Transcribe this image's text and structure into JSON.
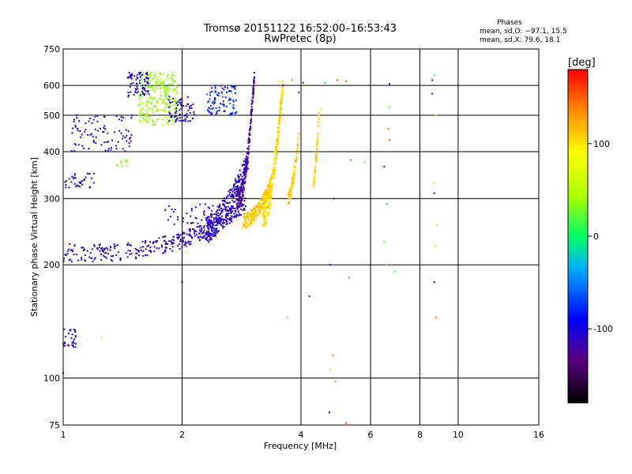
{
  "chart_data": {
    "type": "scatter",
    "title_line1": "Tromsø 20151122 16:52:00–16:53:43",
    "title_line2": "RwPretec (8p)",
    "stats": {
      "heading": "Phases",
      "line_o": "mean, sd,O: −97.1, 15.5",
      "line_x": "mean, sd,X:  79.6, 18.1"
    },
    "xlabel": "Frequency [MHz]",
    "ylabel": "Stationary phase Virtual Height [km]",
    "x_scale": "log",
    "y_scale": "log",
    "xlim": [
      1,
      16
    ],
    "ylim": [
      75,
      750
    ],
    "x_ticks": [
      1,
      2,
      4,
      6,
      8,
      10,
      16
    ],
    "y_ticks": [
      75,
      100,
      200,
      300,
      400,
      500,
      600,
      750
    ],
    "x_grid": [
      2,
      4,
      6,
      8,
      10
    ],
    "y_grid": [
      100,
      200,
      300,
      400,
      500,
      600
    ],
    "colorbar": {
      "label": "[deg]",
      "range": [
        -180,
        180
      ],
      "ticks": [
        100,
        0,
        -100
      ]
    },
    "clusters": [
      {
        "kind": "curve",
        "x0": 1.0,
        "x1": 2.9,
        "y0": 215,
        "y1": 290,
        "exp": 2.2,
        "spread": 12,
        "n": 380,
        "phase": -110,
        "ps": 14
      },
      {
        "kind": "curve",
        "x0": 2.3,
        "x1": 2.95,
        "y0": 250,
        "y1": 380,
        "exp": 1.6,
        "spread": 22,
        "n": 260,
        "phase": -108,
        "ps": 18
      },
      {
        "kind": "curve",
        "x0": 2.75,
        "x1": 3.05,
        "y0": 300,
        "y1": 640,
        "exp": 2.6,
        "spread": 20,
        "n": 220,
        "phase": -125,
        "ps": 14
      },
      {
        "kind": "curve",
        "x0": 2.85,
        "x1": 3.35,
        "y0": 262,
        "y1": 330,
        "exp": 2.0,
        "spread": 12,
        "n": 240,
        "phase": 112,
        "ps": 12
      },
      {
        "kind": "curve",
        "x0": 3.2,
        "x1": 3.6,
        "y0": 275,
        "y1": 600,
        "exp": 2.2,
        "spread": 25,
        "n": 320,
        "phase": 105,
        "ps": 14
      },
      {
        "kind": "curve",
        "x0": 3.7,
        "x1": 3.95,
        "y0": 300,
        "y1": 440,
        "exp": 1.8,
        "spread": 14,
        "n": 80,
        "phase": 115,
        "ps": 14
      },
      {
        "kind": "curve",
        "x0": 4.3,
        "x1": 4.45,
        "y0": 330,
        "y1": 510,
        "exp": 1.5,
        "spread": 10,
        "n": 60,
        "phase": 110,
        "ps": 10
      },
      {
        "kind": "blob",
        "x0": 1.55,
        "x1": 1.95,
        "y0": 470,
        "y1": 650,
        "n": 260,
        "phase": 40,
        "ps": 15
      },
      {
        "kind": "blob",
        "x0": 1.45,
        "x1": 1.65,
        "y0": 560,
        "y1": 650,
        "n": 70,
        "phase": -105,
        "ps": 15
      },
      {
        "kind": "blob",
        "x0": 1.85,
        "x1": 2.15,
        "y0": 480,
        "y1": 560,
        "n": 70,
        "phase": -110,
        "ps": 15
      },
      {
        "kind": "blob",
        "x0": 2.3,
        "x1": 2.75,
        "y0": 500,
        "y1": 600,
        "n": 90,
        "phase": -80,
        "ps": 20
      },
      {
        "kind": "blob",
        "x0": 1.05,
        "x1": 1.5,
        "y0": 400,
        "y1": 500,
        "n": 90,
        "phase": -110,
        "ps": 15
      },
      {
        "kind": "blob",
        "x0": 1.0,
        "x1": 1.2,
        "y0": 320,
        "y1": 350,
        "n": 35,
        "phase": -110,
        "ps": 10
      },
      {
        "kind": "blob",
        "x0": 1.0,
        "x1": 1.08,
        "y0": 120,
        "y1": 135,
        "n": 30,
        "phase": -110,
        "ps": 8
      },
      {
        "kind": "blob",
        "x0": 1.8,
        "x1": 2.4,
        "y0": 255,
        "y1": 290,
        "n": 40,
        "phase": -110,
        "ps": 15
      },
      {
        "kind": "blob",
        "x0": 1.35,
        "x1": 1.45,
        "y0": 365,
        "y1": 380,
        "n": 10,
        "phase": 35,
        "ps": 5
      }
    ],
    "points": [
      {
        "x": 4.72,
        "y": 81,
        "p": -95
      },
      {
        "x": 4.75,
        "y": 105,
        "p": 60
      },
      {
        "x": 4.82,
        "y": 115,
        "p": 150
      },
      {
        "x": 4.9,
        "y": 98,
        "p": 140
      },
      {
        "x": 5.2,
        "y": 76,
        "p": 160
      },
      {
        "x": 4.75,
        "y": 200,
        "p": -110
      },
      {
        "x": 5.3,
        "y": 185,
        "p": 150
      },
      {
        "x": 4.6,
        "y": 610,
        "p": -40
      },
      {
        "x": 4.85,
        "y": 300,
        "p": -130
      },
      {
        "x": 5.35,
        "y": 380,
        "p": -40
      },
      {
        "x": 5.8,
        "y": 375,
        "p": 20
      },
      {
        "x": 4.2,
        "y": 165,
        "p": -80
      },
      {
        "x": 3.7,
        "y": 145,
        "p": 20
      },
      {
        "x": 4.5,
        "y": 520,
        "p": 60
      },
      {
        "x": 4.95,
        "y": 620,
        "p": 160
      },
      {
        "x": 5.2,
        "y": 615,
        "p": 150
      },
      {
        "x": 6.5,
        "y": 365,
        "p": -120
      },
      {
        "x": 6.6,
        "y": 290,
        "p": -40
      },
      {
        "x": 6.5,
        "y": 230,
        "p": 15
      },
      {
        "x": 6.6,
        "y": 200,
        "p": 140
      },
      {
        "x": 6.9,
        "y": 192,
        "p": 10
      },
      {
        "x": 6.65,
        "y": 460,
        "p": 150
      },
      {
        "x": 6.7,
        "y": 430,
        "p": 150
      },
      {
        "x": 6.7,
        "y": 525,
        "p": 15
      },
      {
        "x": 6.7,
        "y": 605,
        "p": -100
      },
      {
        "x": 8.7,
        "y": 640,
        "p": 10
      },
      {
        "x": 8.6,
        "y": 620,
        "p": -100
      },
      {
        "x": 8.6,
        "y": 570,
        "p": -130
      },
      {
        "x": 8.8,
        "y": 500,
        "p": 110
      },
      {
        "x": 8.7,
        "y": 330,
        "p": 40
      },
      {
        "x": 8.7,
        "y": 310,
        "p": -130
      },
      {
        "x": 8.85,
        "y": 255,
        "p": 120
      },
      {
        "x": 8.75,
        "y": 225,
        "p": 120
      },
      {
        "x": 8.7,
        "y": 180,
        "p": -110
      },
      {
        "x": 8.8,
        "y": 145,
        "p": 150
      },
      {
        "x": 3.05,
        "y": 630,
        "p": -110
      },
      {
        "x": 3.5,
        "y": 615,
        "p": 100
      },
      {
        "x": 3.8,
        "y": 620,
        "p": 150
      },
      {
        "x": 3.6,
        "y": 600,
        "p": -100
      },
      {
        "x": 4.05,
        "y": 610,
        "p": -110
      },
      {
        "x": 3.95,
        "y": 575,
        "p": -80
      },
      {
        "x": 2.05,
        "y": 215,
        "p": 90
      },
      {
        "x": 2.0,
        "y": 180,
        "p": -100
      },
      {
        "x": 1.25,
        "y": 128,
        "p": 40
      },
      {
        "x": 1.0,
        "y": 103,
        "p": -100
      }
    ]
  }
}
